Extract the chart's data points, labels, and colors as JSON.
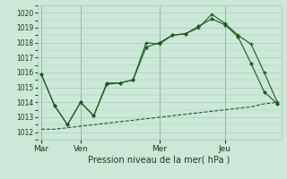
{
  "xlabel": "Pression niveau de la mer( hPa )",
  "ylim": [
    1011.5,
    1020.5
  ],
  "yticks": [
    1012,
    1013,
    1014,
    1015,
    1016,
    1017,
    1018,
    1019,
    1020
  ],
  "bg_color": "#cce8d8",
  "grid_color": "#aaccbb",
  "line_color": "#1a5c1a",
  "day_labels": [
    "Mar",
    "Ven",
    "Mer",
    "Jeu"
  ],
  "day_positions": [
    0,
    3,
    9,
    14
  ],
  "line1_x": [
    0,
    1,
    2,
    3,
    4,
    5,
    6,
    7,
    8,
    9,
    10,
    11,
    12,
    13,
    14,
    15,
    16,
    17,
    18
  ],
  "line1_y": [
    1015.9,
    1013.8,
    1012.5,
    1014.0,
    1013.1,
    1015.2,
    1015.3,
    1015.5,
    1018.0,
    1017.9,
    1018.5,
    1018.6,
    1019.0,
    1019.9,
    1019.3,
    1018.5,
    1017.9,
    1016.0,
    1014.0
  ],
  "line2_x": [
    0,
    1,
    2,
    3,
    4,
    5,
    6,
    7,
    8,
    9,
    10,
    11,
    12,
    13,
    14,
    15,
    16,
    17,
    18
  ],
  "line2_y": [
    1015.9,
    1013.8,
    1012.5,
    1014.0,
    1013.1,
    1015.3,
    1015.3,
    1015.5,
    1017.7,
    1018.0,
    1018.5,
    1018.6,
    1019.1,
    1019.6,
    1019.2,
    1018.4,
    1016.6,
    1014.7,
    1013.9
  ],
  "line3_x": [
    0,
    1,
    2,
    3,
    4,
    5,
    6,
    7,
    8,
    9,
    10,
    11,
    12,
    13,
    14,
    15,
    16,
    17,
    18
  ],
  "line3_y": [
    1012.2,
    1012.2,
    1012.3,
    1012.4,
    1012.5,
    1012.6,
    1012.7,
    1012.8,
    1012.9,
    1013.0,
    1013.1,
    1013.2,
    1013.3,
    1013.4,
    1013.5,
    1013.6,
    1013.7,
    1013.9,
    1014.0
  ],
  "vline_x": [
    0,
    3,
    9,
    14
  ],
  "xlim": [
    -0.3,
    18.3
  ],
  "xlabel_fontsize": 7,
  "ytick_fontsize": 5.5,
  "xtick_fontsize": 6.5
}
